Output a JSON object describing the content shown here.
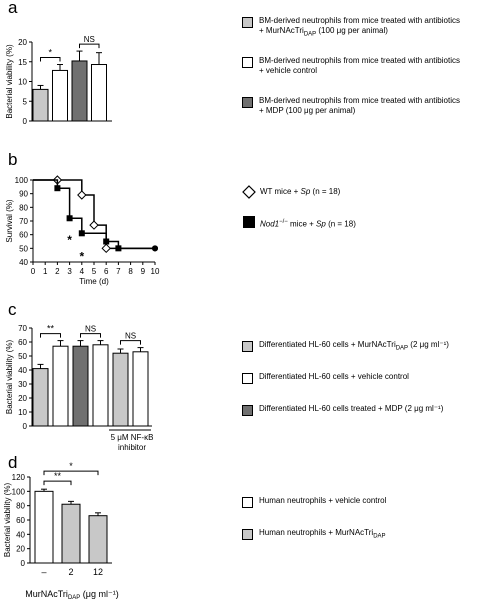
{
  "panels": {
    "a": {
      "letter": "a",
      "legend": [
        {
          "text": "BM-derived neutrophils from mice treated with antibiotics + MurNAcTri",
          "sub": "DAP",
          "tail": " (100 μg per animal)",
          "color": "#c8c8c8"
        },
        {
          "text": "BM-derived neutrophils from mice treated with antibiotics + vehicle control",
          "sub": "",
          "tail": "",
          "color": "#ffffff"
        },
        {
          "text": "BM-derived neutrophils from mice treated with antibiotics + MDP (100 μg per animal)",
          "sub": "",
          "tail": "",
          "color": "#707070"
        }
      ]
    },
    "b": {
      "letter": "b",
      "legend": [
        {
          "label": "WT mice + ",
          "ital": "Sp",
          "tail": " (n = 18)",
          "marker": "diamond"
        },
        {
          "label": "Nod1",
          "sup": "−/−",
          "mid": " mice + ",
          "ital": "Sp",
          "tail": " (n = 18)",
          "marker": "square"
        }
      ]
    },
    "c": {
      "letter": "c",
      "legend": [
        {
          "text": "Differentiated HL-60 cells + MurNAcTri",
          "sub": "DAP",
          "tail": " (2 μg ml⁻¹)",
          "color": "#c8c8c8"
        },
        {
          "text": "Differentiated HL-60 cells + vehicle control",
          "sub": "",
          "tail": "",
          "color": "#ffffff"
        },
        {
          "text": "Differentiated HL-60 cells treated + MDP (2 μg ml⁻¹)",
          "sub": "",
          "tail": "",
          "color": "#707070"
        }
      ],
      "bracket_label_1": "5 μM NF-κB",
      "bracket_label_2": "inhibitor"
    },
    "d": {
      "letter": "d",
      "legend": [
        {
          "text": "Human neutrophils + vehicle control",
          "sub": "",
          "tail": "",
          "color": "#ffffff"
        },
        {
          "text": "Human neutrophils + MurNAcTri",
          "sub": "DAP",
          "tail": "",
          "color": "#c8c8c8"
        }
      ],
      "xlabel_main": "MurNAcTri",
      "xlabel_sub": "DAP",
      "xlabel_tail": " (μg ml⁻¹)"
    }
  },
  "chart_data": [
    {
      "type": "bar",
      "panel": "a",
      "ylabel": "Bacterial viability (%)",
      "ylim": [
        0,
        20
      ],
      "yticks": [
        0,
        5,
        10,
        15,
        20
      ],
      "values": [
        8,
        12.8,
        15.2,
        14.3
      ],
      "errors": [
        1,
        1.5,
        2.5,
        3
      ],
      "colors": [
        "#c8c8c8",
        "#ffffff",
        "#707070",
        "#ffffff"
      ],
      "annotations": [
        {
          "label": "*",
          "from": 0,
          "to": 1
        },
        {
          "label": "NS",
          "from": 2,
          "to": 3
        }
      ]
    },
    {
      "type": "line",
      "panel": "b",
      "ylabel": "Survival (%)",
      "xlabel": "Time (d)",
      "xlim": [
        0,
        10
      ],
      "ylim": [
        40,
        100
      ],
      "xticks": [
        0,
        1,
        2,
        3,
        4,
        5,
        6,
        7,
        8,
        9,
        10
      ],
      "yticks": [
        40,
        50,
        60,
        70,
        80,
        90,
        100
      ],
      "series": [
        {
          "name": "WT mice + Sp (n = 18)",
          "marker": "diamond",
          "x": [
            0,
            2,
            4,
            5,
            6,
            10
          ],
          "y": [
            100,
            100,
            89,
            67,
            50,
            50
          ]
        },
        {
          "name": "Nod1−/− mice + Sp (n = 18)",
          "marker": "square",
          "x": [
            0,
            2,
            3,
            4,
            6,
            7,
            10
          ],
          "y": [
            100,
            94,
            72,
            61,
            55,
            50,
            50
          ]
        }
      ],
      "star_points": [
        {
          "x": 3,
          "y": 62
        },
        {
          "x": 4,
          "y": 50
        }
      ],
      "star_label": "*"
    },
    {
      "type": "bar",
      "panel": "c",
      "ylabel": "Bacterial viability (%)",
      "ylim": [
        0,
        70
      ],
      "yticks": [
        0,
        10,
        20,
        30,
        40,
        50,
        60,
        70
      ],
      "values": [
        41,
        57,
        57,
        58,
        52,
        53
      ],
      "errors": [
        3,
        4,
        4,
        3,
        3,
        3
      ],
      "colors": [
        "#c8c8c8",
        "#ffffff",
        "#707070",
        "#ffffff",
        "#c8c8c8",
        "#ffffff"
      ],
      "annotations": [
        {
          "label": "**",
          "from": 0,
          "to": 1
        },
        {
          "label": "NS",
          "from": 2,
          "to": 3
        },
        {
          "label": "NS",
          "from": 4,
          "to": 5
        }
      ]
    },
    {
      "type": "bar",
      "panel": "d",
      "ylabel": "Bacterial viability (%)",
      "ylim": [
        0,
        120
      ],
      "yticks": [
        0,
        20,
        40,
        60,
        80,
        100,
        120
      ],
      "categories": [
        "–",
        "2",
        "12"
      ],
      "values": [
        100,
        82,
        66
      ],
      "errors": [
        3,
        4,
        4
      ],
      "colors": [
        "#ffffff",
        "#c8c8c8",
        "#c8c8c8"
      ],
      "annotations": [
        {
          "label": "**",
          "from": 0,
          "to": 1
        },
        {
          "label": "*",
          "from": 0,
          "to": 2
        }
      ]
    }
  ]
}
